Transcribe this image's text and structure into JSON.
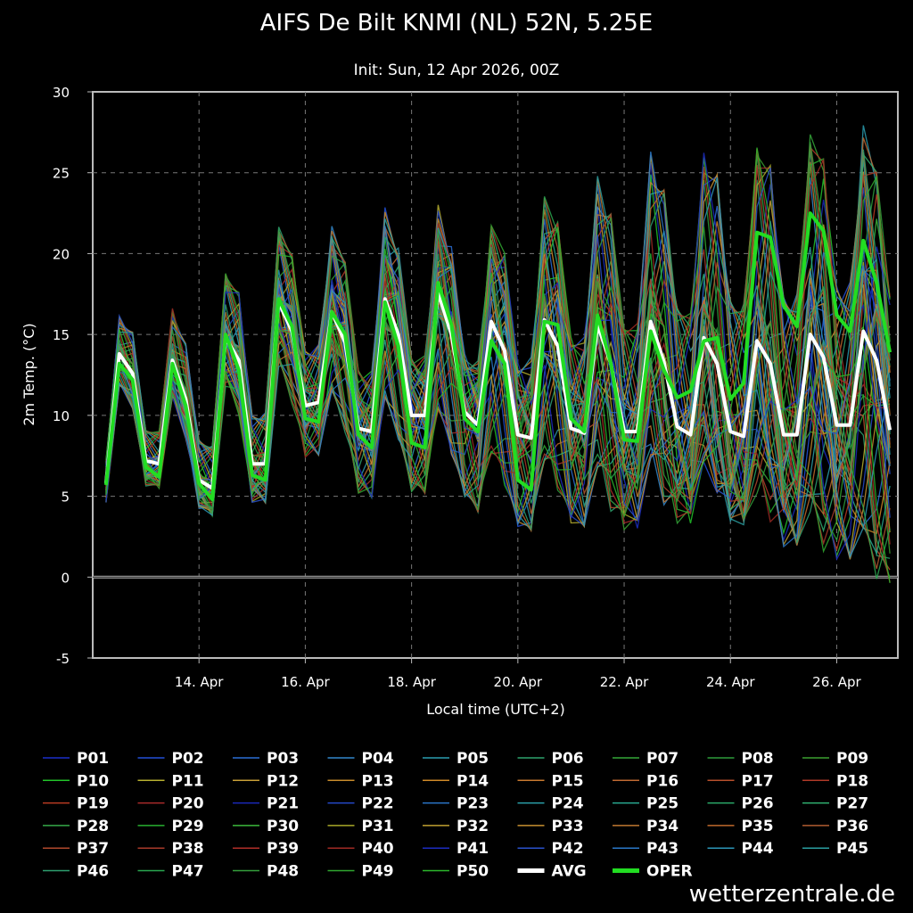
{
  "chart_data": {
    "type": "line",
    "title": "AIFS De Bilt KNMI (NL) 52N, 5.25E",
    "subtitle": "Init: Sun, 12 Apr 2026, 00Z",
    "xlabel": "Local time (UTC+2)",
    "ylabel": "2m Temp. (°C)",
    "ylim": [
      -5,
      30
    ],
    "yticks": [
      -5,
      0,
      5,
      10,
      15,
      20,
      25,
      30
    ],
    "xlim_days": [
      12.0,
      27.15
    ],
    "xticks": [
      {
        "day": 14,
        "label": "14. Apr"
      },
      {
        "day": 16,
        "label": "16. Apr"
      },
      {
        "day": 18,
        "label": "18. Apr"
      },
      {
        "day": 20,
        "label": "20. Apr"
      },
      {
        "day": 22,
        "label": "22. Apr"
      },
      {
        "day": 24,
        "label": "24. Apr"
      },
      {
        "day": 26,
        "label": "26. Apr"
      }
    ],
    "grid": true,
    "step_hours": 6,
    "start_day": 12.25,
    "avg": {
      "name": "AVG",
      "color": "#ffffff",
      "values": [
        5.8,
        13.8,
        12.6,
        7.2,
        7.0,
        13.4,
        11.0,
        6.0,
        5.5,
        14.8,
        13.4,
        7.0,
        7.0,
        17.0,
        15.2,
        10.6,
        10.8,
        16.4,
        14.5,
        9.2,
        9.0,
        17.2,
        15.0,
        10.0,
        10.0,
        17.6,
        15.0,
        10.2,
        9.4,
        15.8,
        14.0,
        8.8,
        8.6,
        15.9,
        14.3,
        9.2,
        8.9,
        15.6,
        13.2,
        9.0,
        9.0,
        15.8,
        13.3,
        9.3,
        8.8,
        14.8,
        13.2,
        9.0,
        8.7,
        14.6,
        13.2,
        8.8,
        8.8,
        15.0,
        13.6,
        9.4,
        9.4,
        15.2,
        13.4,
        9.1
      ]
    },
    "oper": {
      "name": "OPER",
      "color": "#22dd22",
      "values": [
        5.7,
        13.2,
        12.2,
        6.8,
        6.2,
        13.2,
        10.6,
        5.8,
        4.8,
        15.0,
        12.8,
        6.3,
        6.0,
        17.2,
        15.5,
        9.8,
        9.6,
        16.4,
        15.0,
        8.8,
        8.0,
        17.0,
        14.3,
        8.3,
        8.0,
        18.2,
        15.6,
        9.8,
        9.0,
        14.6,
        13.2,
        6.0,
        5.4,
        15.8,
        15.6,
        9.8,
        9.0,
        16.2,
        13.2,
        8.5,
        8.4,
        15.2,
        12.8,
        11.1,
        11.5,
        14.6,
        14.8,
        11.0,
        12.0,
        21.3,
        21.0,
        16.8,
        15.5,
        22.5,
        21.4,
        16.2,
        15.2,
        20.8,
        18.2,
        13.9
      ]
    },
    "members": [
      {
        "name": "P01",
        "color": "#1a2fc9"
      },
      {
        "name": "P02",
        "color": "#2250d8"
      },
      {
        "name": "P03",
        "color": "#2b6fd6"
      },
      {
        "name": "P04",
        "color": "#3288cc"
      },
      {
        "name": "P05",
        "color": "#2a9db0"
      },
      {
        "name": "P06",
        "color": "#2ea36e"
      },
      {
        "name": "P07",
        "color": "#34a838"
      },
      {
        "name": "P08",
        "color": "#2e9c3a"
      },
      {
        "name": "P09",
        "color": "#3aa030"
      },
      {
        "name": "P10",
        "color": "#22c42a"
      },
      {
        "name": "P11",
        "color": "#b8b030"
      },
      {
        "name": "P12",
        "color": "#c8a038"
      },
      {
        "name": "P13",
        "color": "#c88c2c"
      },
      {
        "name": "P14",
        "color": "#d08a28"
      },
      {
        "name": "P15",
        "color": "#c87a30"
      },
      {
        "name": "P16",
        "color": "#c06a32"
      },
      {
        "name": "P17",
        "color": "#b8502c"
      },
      {
        "name": "P18",
        "color": "#b03a28"
      },
      {
        "name": "P19",
        "color": "#b83a22"
      },
      {
        "name": "P20",
        "color": "#a82a2a"
      },
      {
        "name": "P21",
        "color": "#1a28b8"
      },
      {
        "name": "P22",
        "color": "#2448c8"
      },
      {
        "name": "P23",
        "color": "#2a74c8"
      },
      {
        "name": "P24",
        "color": "#2aa0a8"
      },
      {
        "name": "P25",
        "color": "#28a890"
      },
      {
        "name": "P26",
        "color": "#2aa868"
      },
      {
        "name": "P27",
        "color": "#30b070"
      },
      {
        "name": "P28",
        "color": "#34a848"
      },
      {
        "name": "P29",
        "color": "#28b030"
      },
      {
        "name": "P30",
        "color": "#3cb83c"
      },
      {
        "name": "P31",
        "color": "#a8a828"
      },
      {
        "name": "P32",
        "color": "#c0a030"
      },
      {
        "name": "P33",
        "color": "#c89030"
      },
      {
        "name": "P34",
        "color": "#c07830"
      },
      {
        "name": "P35",
        "color": "#c06a2c"
      },
      {
        "name": "P36",
        "color": "#b05c30"
      },
      {
        "name": "P37",
        "color": "#b0482c"
      },
      {
        "name": "P38",
        "color": "#a83a2a"
      },
      {
        "name": "P39",
        "color": "#b02e28"
      },
      {
        "name": "P40",
        "color": "#a02a24"
      },
      {
        "name": "P41",
        "color": "#1c2cc0"
      },
      {
        "name": "P42",
        "color": "#2a52cc"
      },
      {
        "name": "P43",
        "color": "#2a78c8"
      },
      {
        "name": "P44",
        "color": "#2c96b8"
      },
      {
        "name": "P45",
        "color": "#2a9ea0"
      },
      {
        "name": "P46",
        "color": "#2ea070"
      },
      {
        "name": "P47",
        "color": "#2aa850"
      },
      {
        "name": "P48",
        "color": "#34a03c"
      },
      {
        "name": "P49",
        "color": "#30a830"
      },
      {
        "name": "P50",
        "color": "#2cb82c"
      }
    ]
  },
  "watermark": "wetterzentrale.de"
}
